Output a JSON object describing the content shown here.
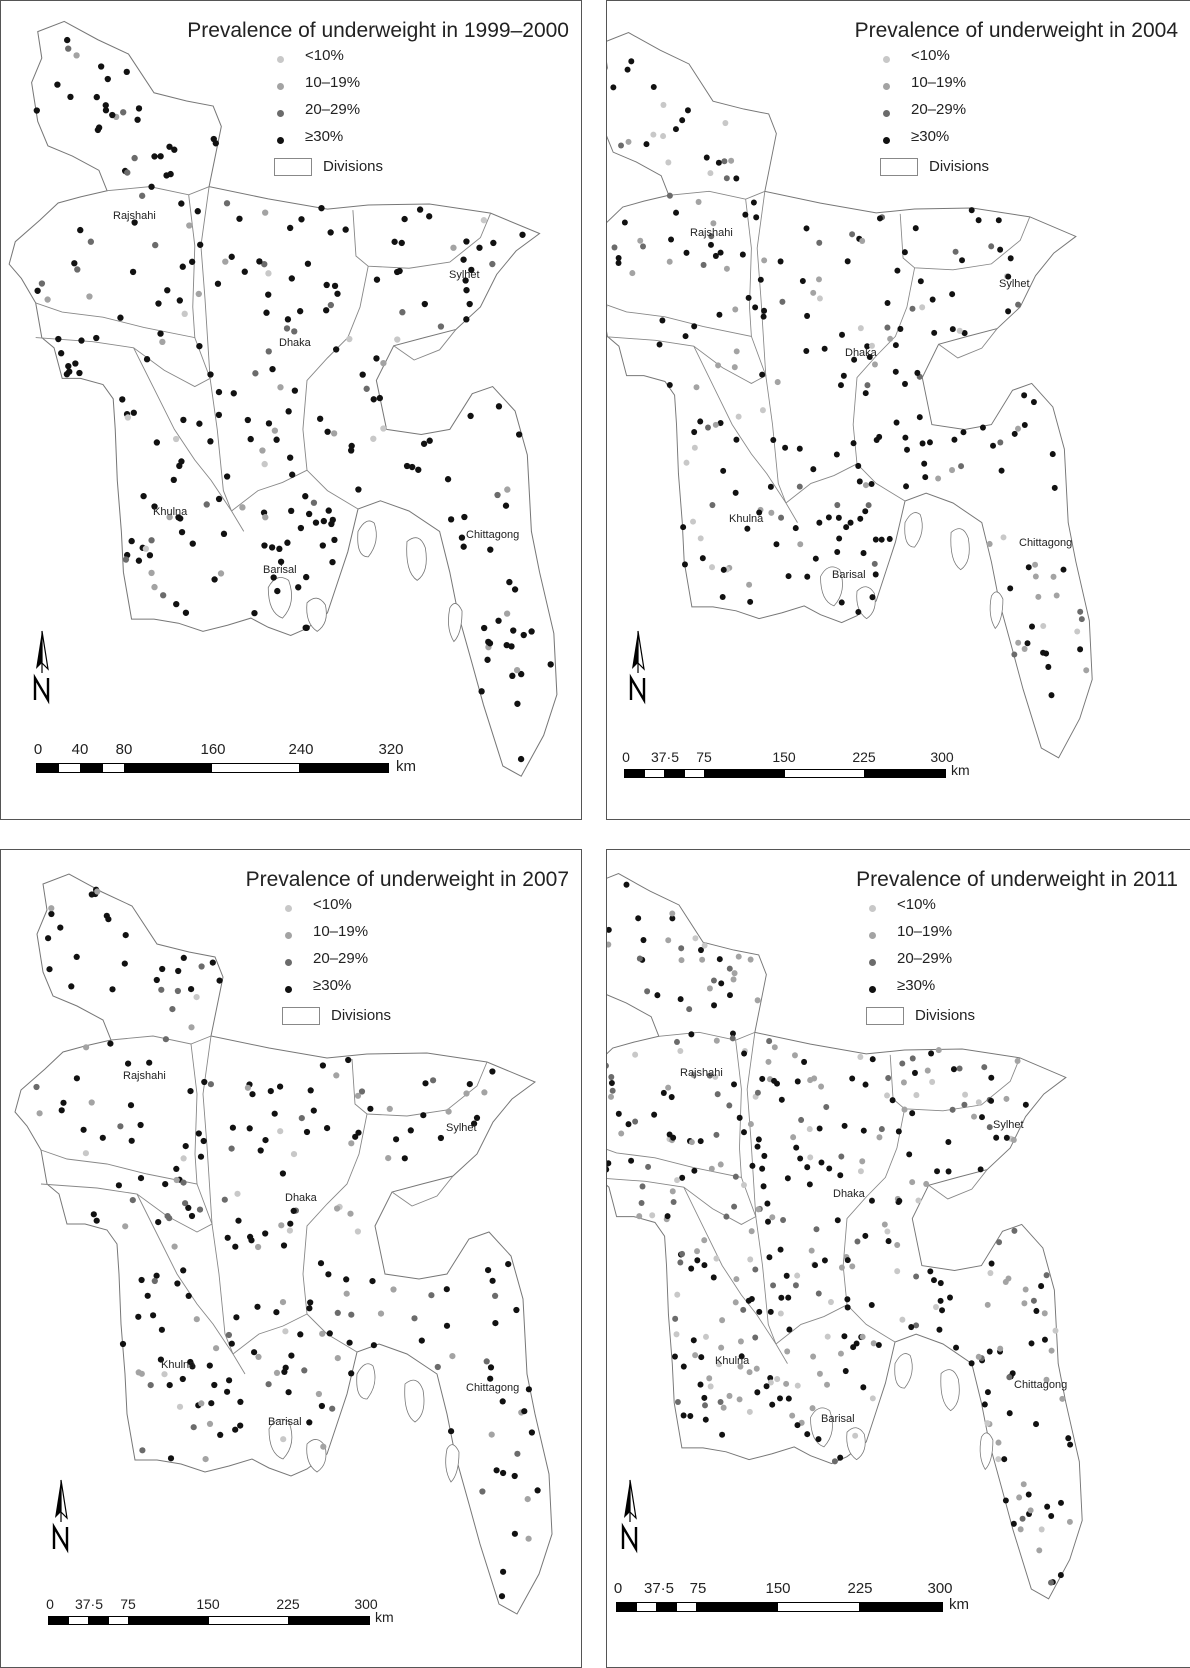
{
  "legend": {
    "items": [
      {
        "label": "<10%",
        "color": "#c8c8c8"
      },
      {
        "label": "10–19%",
        "color": "#a3a3a3"
      },
      {
        "label": "20–29%",
        "color": "#6b6b6b"
      },
      {
        "label": "≥30%",
        "color": "#111111"
      }
    ],
    "divisions_label": "Divisions"
  },
  "division_names": [
    "Rajshahi",
    "Dhaka",
    "Sylhet",
    "Khulna",
    "Barisal",
    "Chittagong"
  ],
  "unit_label": "km",
  "panels": [
    {
      "title": "Prevalence of underweight in 1999–2000",
      "scale_ticks": [
        "0",
        "40",
        "80",
        "160",
        "240",
        "320"
      ]
    },
    {
      "title": "Prevalence of underweight in 2004",
      "scale_ticks": [
        "0",
        "37·5",
        "75",
        "150",
        "225",
        "300"
      ]
    },
    {
      "title": "Prevalence of underweight in 2007",
      "scale_ticks": [
        "0",
        "37·5",
        "75",
        "150",
        "225",
        "300"
      ]
    },
    {
      "title": "Prevalence of underweight in 2011",
      "scale_ticks": [
        "0",
        "37·5",
        "75",
        "150",
        "225",
        "300"
      ]
    }
  ],
  "north_arrow_icon": "north-arrow-icon"
}
